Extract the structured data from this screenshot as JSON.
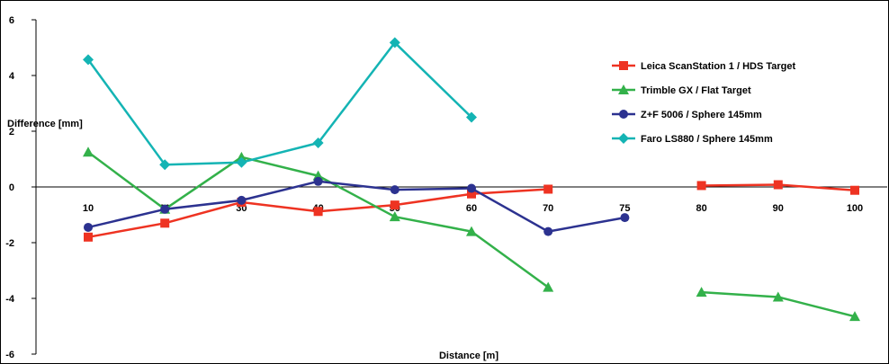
{
  "chart_data": {
    "type": "line",
    "title": "",
    "xlabel": "Distance [m]",
    "ylabel": "Difference [mm]",
    "categories": [
      "10",
      "20",
      "30",
      "40",
      "50",
      "60",
      "70",
      "75",
      "80",
      "90",
      "100"
    ],
    "ylim": [
      -6,
      6
    ],
    "yticks": [
      "6",
      "4",
      "2",
      "0",
      "-2",
      "-4",
      "-6"
    ],
    "grid": false,
    "legend_position": "right",
    "series": [
      {
        "name": "Leica ScanStation 1 / HDS Target",
        "color": "#ee3322",
        "marker": "square",
        "values": [
          -1.8,
          -1.3,
          -0.55,
          -0.88,
          -0.65,
          -0.25,
          -0.08,
          null,
          0.05,
          0.08,
          -0.12
        ]
      },
      {
        "name": "Trimble GX / Flat Target",
        "color": "#33b14a",
        "marker": "triangle",
        "values": [
          1.25,
          -0.8,
          1.07,
          0.4,
          -1.07,
          -1.6,
          -3.6,
          null,
          -3.78,
          -3.95,
          -4.65
        ]
      },
      {
        "name": "Z+F 5006 / Sphere 145mm",
        "color": "#2c3290",
        "marker": "circle",
        "values": [
          -1.45,
          -0.8,
          -0.48,
          0.2,
          -0.1,
          -0.05,
          -1.6,
          -1.1,
          null,
          null,
          null
        ]
      },
      {
        "name": "Faro LS880 / Sphere 145mm",
        "color": "#14b4b4",
        "marker": "diamond",
        "values": [
          4.57,
          0.8,
          0.88,
          1.58,
          5.18,
          2.5,
          null,
          null,
          null,
          null,
          null
        ]
      }
    ]
  }
}
